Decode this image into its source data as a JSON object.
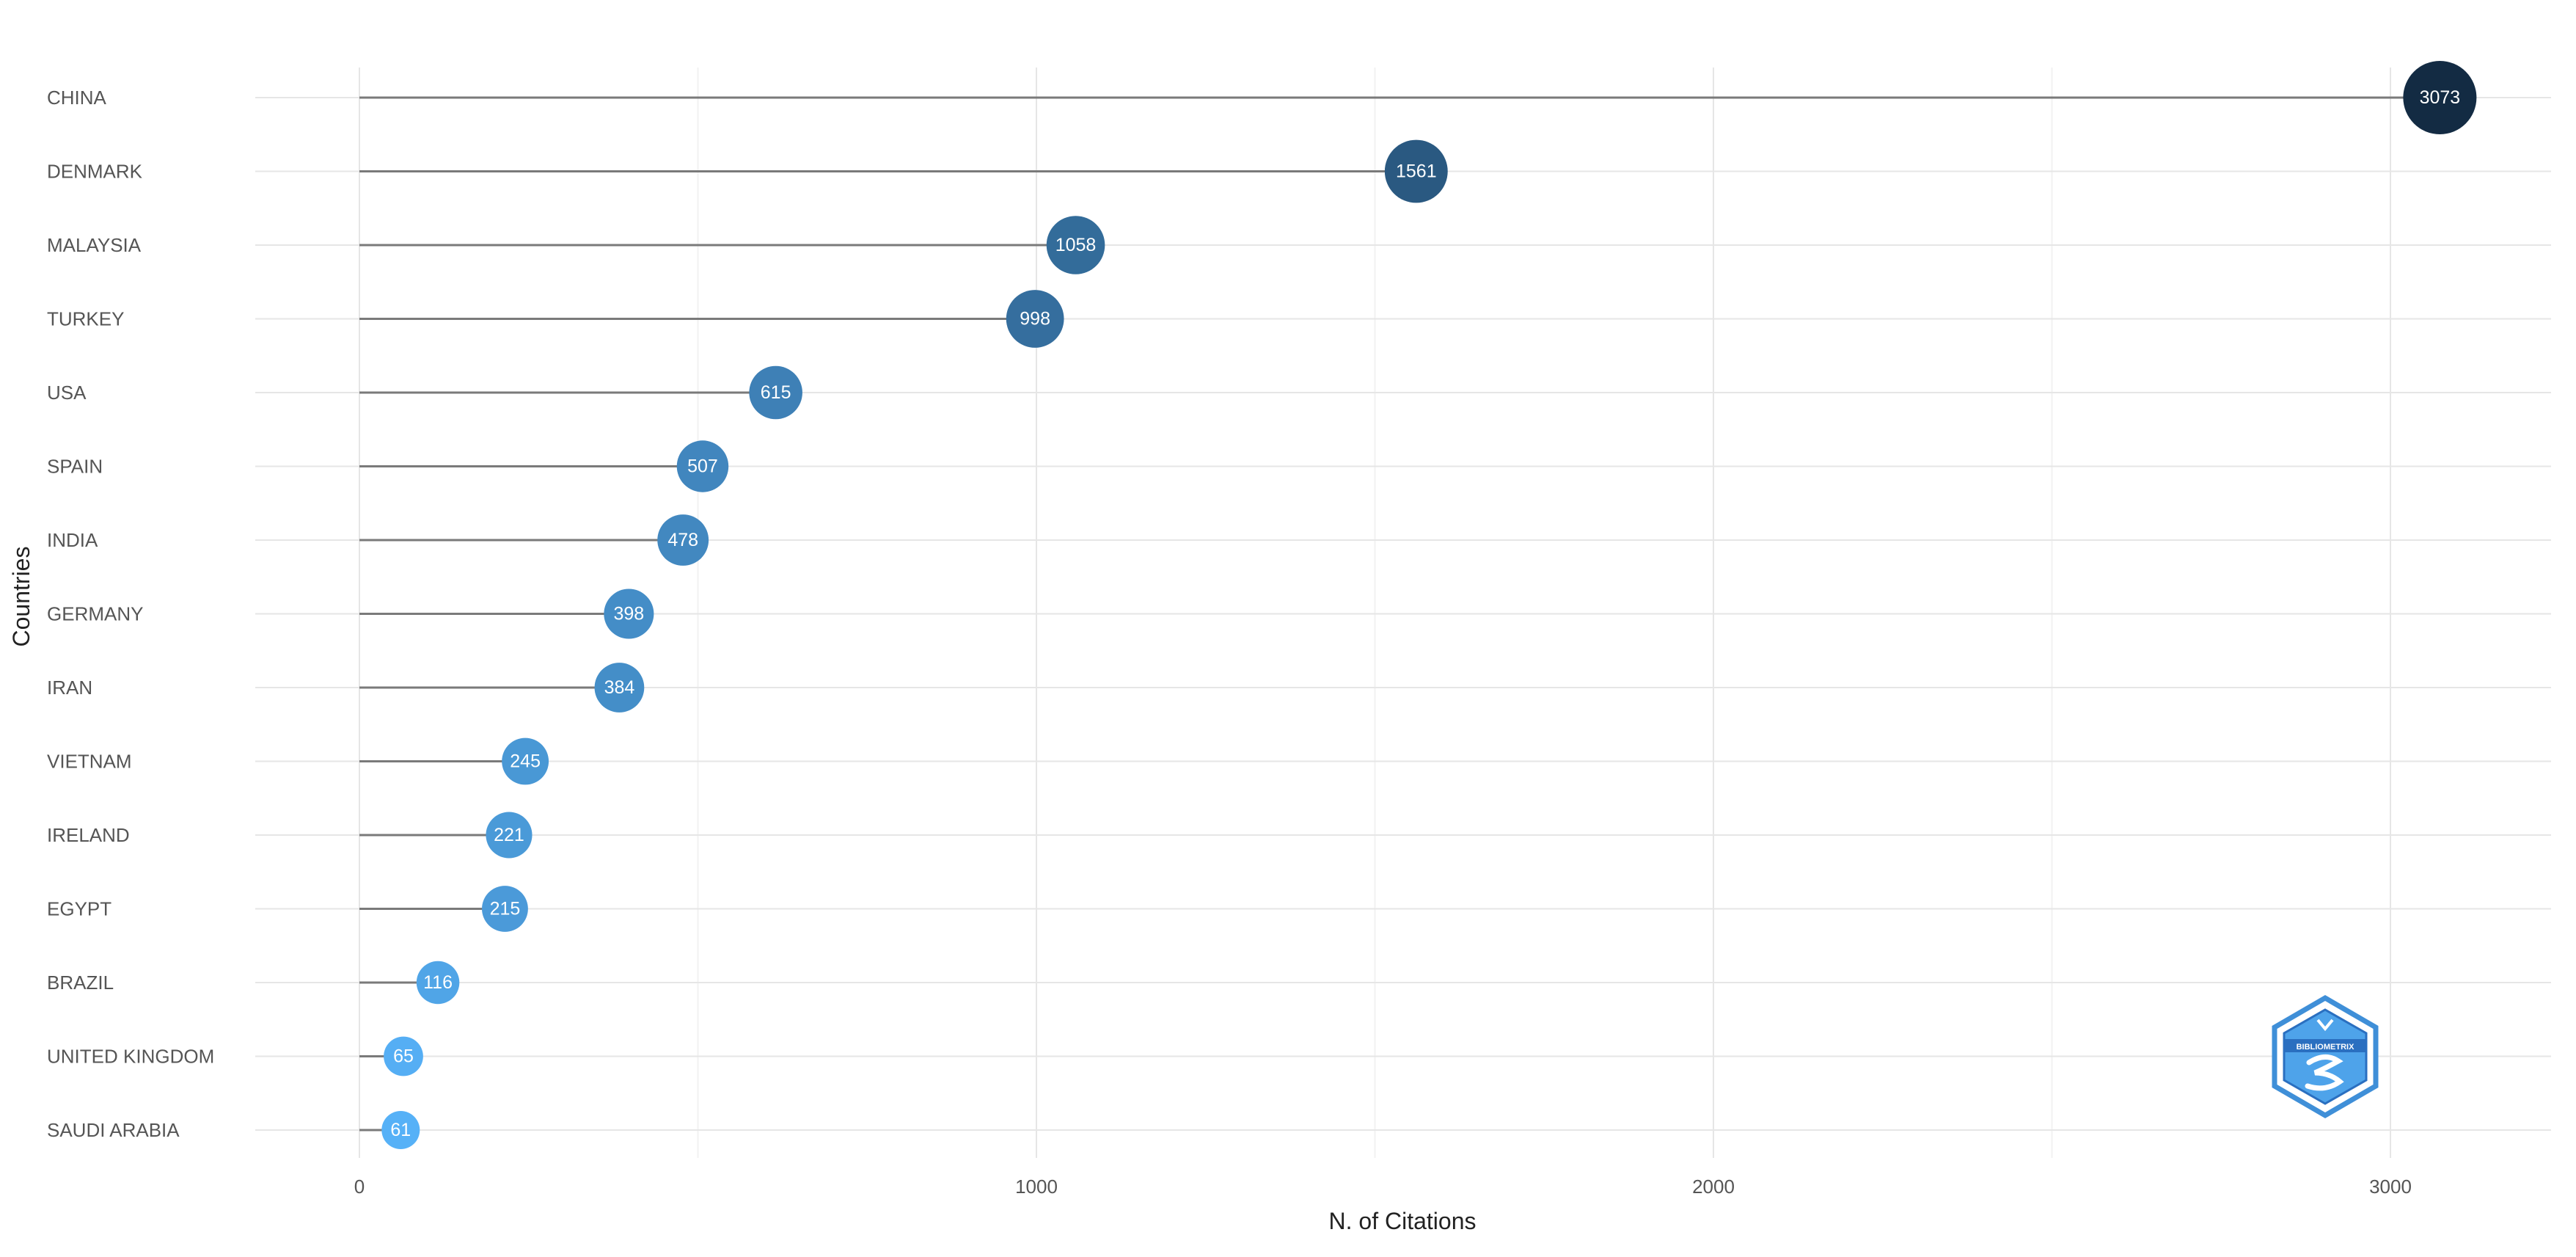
{
  "chart_data": {
    "type": "lollipop",
    "title": "",
    "xlabel": "N. of Citations",
    "ylabel": "Countries",
    "xlim": [
      -160,
      3260
    ],
    "x_ticks": [
      0,
      1000,
      2000,
      3000
    ],
    "x_minor_gridlines": [
      500,
      1500,
      2500
    ],
    "grid": true,
    "legend": "none",
    "categories": [
      "CHINA",
      "DENMARK",
      "MALAYSIA",
      "TURKEY",
      "USA",
      "SPAIN",
      "INDIA",
      "GERMANY",
      "IRAN",
      "VIETNAM",
      "IRELAND",
      "EGYPT",
      "BRAZIL",
      "UNITED KINGDOM",
      "SAUDI ARABIA"
    ],
    "values": [
      3073,
      1561,
      1058,
      998,
      615,
      507,
      478,
      398,
      384,
      245,
      221,
      215,
      116,
      65,
      61
    ],
    "color_scale": {
      "low": "#56B1F7",
      "high": "#132B43"
    },
    "stem_color": "#7a7a7a",
    "value_label_color": "#ffffff"
  },
  "logo": {
    "name": "bibliometrix-logo",
    "text": "BIBLIOMETRIX"
  }
}
